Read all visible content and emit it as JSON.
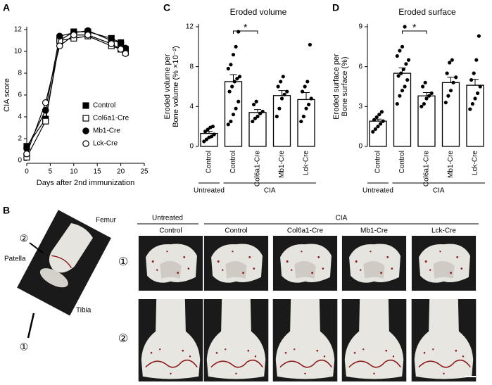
{
  "chart_data": [
    {
      "type": "line",
      "panel": "A",
      "ylabel": "CIA score",
      "xlabel": "Days after 2nd immunization",
      "x": [
        0,
        4,
        7,
        10,
        13,
        18,
        20,
        21
      ],
      "xlim": [
        0,
        25
      ],
      "xticks": [
        0,
        5,
        10,
        15,
        20,
        25
      ],
      "ylim": [
        0,
        12
      ],
      "yticks": [
        0,
        2,
        4,
        6,
        8,
        10,
        12
      ],
      "series": [
        {
          "name": "Control",
          "color": "#000000",
          "marker": "square",
          "filled": true,
          "values": [
            1.3,
            3.8,
            11.0,
            11.8,
            11.8,
            11.2,
            10.8,
            10.2
          ]
        },
        {
          "name": "Col6a1-Cre",
          "color": "#000000",
          "marker": "square",
          "filled": false,
          "values": [
            0.3,
            3.6,
            11.0,
            11.2,
            11.4,
            10.5,
            10.2,
            9.9
          ]
        },
        {
          "name": "Mb1-Cre",
          "color": "#000000",
          "marker": "circle",
          "filled": true,
          "values": [
            1.1,
            4.6,
            11.4,
            11.7,
            11.9,
            11.0,
            10.8,
            10.3
          ]
        },
        {
          "name": "Lck-Cre",
          "color": "#000000",
          "marker": "circle",
          "filled": false,
          "values": [
            0.6,
            5.3,
            10.5,
            11.5,
            11.5,
            10.7,
            10.2,
            9.8
          ]
        }
      ]
    },
    {
      "type": "bar",
      "panel": "C",
      "title": "Eroded volume",
      "ylabel": [
        "Eroded volume per",
        "Bone volume (% ×10⁻²)"
      ],
      "categories": [
        "Control",
        "Control",
        "Col6a1-Cre",
        "Mb1-Cre",
        "Lck-Cre"
      ],
      "group_labels": [
        "Untreated",
        "CIA"
      ],
      "values": [
        1.3,
        6.5,
        3.4,
        5.1,
        4.7
      ],
      "errors": [
        0.2,
        0.7,
        0.3,
        0.5,
        0.7
      ],
      "color": "#ffffff",
      "points": [
        [
          0.5,
          0.7,
          0.9,
          1.0,
          1.2,
          1.5,
          1.7,
          1.9,
          2.0
        ],
        [
          2.2,
          2.5,
          3.2,
          3.8,
          4.5,
          5.5,
          6.0,
          6.5,
          6.8,
          7.0,
          7.8,
          8.2,
          9.2,
          10.0,
          11.5
        ],
        [
          2.5,
          2.8,
          3.0,
          3.3,
          3.5,
          4.2,
          4.5
        ],
        [
          3.0,
          3.8,
          4.8,
          5.2,
          5.5,
          6.0,
          6.5,
          7.0
        ],
        [
          2.5,
          3.0,
          3.8,
          4.2,
          4.8,
          5.5,
          6.0,
          6.5,
          10.2
        ]
      ],
      "annotation": "*",
      "ylim": [
        0,
        12
      ],
      "yticks": [
        0,
        4,
        8,
        12
      ]
    },
    {
      "type": "bar",
      "panel": "D",
      "title": "Eroded surface",
      "ylabel": [
        "Eroded surface per",
        "Bone surface (%)"
      ],
      "categories": [
        "Control",
        "Control",
        "Col6a1-Cre",
        "Mb1-Cre",
        "Lck-Cre"
      ],
      "group_labels": [
        "Untreated",
        "CIA"
      ],
      "values": [
        1.9,
        5.5,
        3.8,
        4.8,
        4.6
      ],
      "errors": [
        0.15,
        0.4,
        0.25,
        0.4,
        0.45
      ],
      "color": "#ffffff",
      "points": [
        [
          1.1,
          1.3,
          1.5,
          1.7,
          1.9,
          2.0,
          2.2,
          2.4,
          2.6
        ],
        [
          3.2,
          3.8,
          4.2,
          4.5,
          5.0,
          5.3,
          5.5,
          5.8,
          6.2,
          6.5,
          6.8,
          7.2,
          7.5,
          9.0
        ],
        [
          3.0,
          3.2,
          3.6,
          3.8,
          4.0,
          4.5,
          4.8
        ],
        [
          3.3,
          3.8,
          4.2,
          4.8,
          5.2,
          5.5,
          6.3,
          6.5
        ],
        [
          2.8,
          3.2,
          3.6,
          4.0,
          4.5,
          5.0,
          5.5,
          6.5,
          8.3
        ]
      ],
      "annotation": "*",
      "ylim": [
        0,
        9
      ],
      "yticks": [
        0,
        3,
        6,
        9
      ]
    }
  ],
  "panel_b": {
    "label": "B",
    "group_labels": [
      "Untreated",
      "CIA"
    ],
    "column_labels": [
      "Control",
      "Control",
      "Col6a1-Cre",
      "Mb1-Cre",
      "Lck-Cre"
    ],
    "row_labels": [
      "①",
      "②"
    ],
    "schematic_labels": {
      "femur": "Femur",
      "patella": "Patella",
      "tibia": "Tibia",
      "view_2": "②",
      "view_1": "①"
    }
  }
}
